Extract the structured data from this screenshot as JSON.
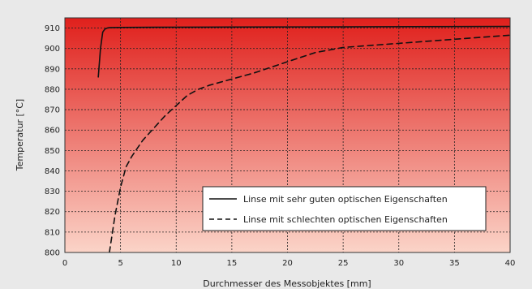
{
  "chart_data": {
    "type": "line",
    "title": "",
    "xlabel": "Durchmesser des Messobjektes [mm]",
    "ylabel": "Temperatur [°C]",
    "xlim": [
      0,
      40
    ],
    "ylim": [
      800,
      915
    ],
    "x_ticks": [
      0,
      5,
      10,
      15,
      20,
      25,
      30,
      35,
      40
    ],
    "y_ticks": [
      800,
      810,
      820,
      830,
      840,
      850,
      860,
      870,
      880,
      890,
      900,
      910
    ],
    "grid": true,
    "legend_position": "bottom-right",
    "background_gradient": {
      "top": "#e0201c",
      "bottom": "#fbd4c8"
    },
    "series": [
      {
        "name": "Linse mit sehr guten optischen Eigenschaften",
        "line_style": "solid",
        "color": "#111111",
        "x": [
          3.0,
          3.2,
          3.4,
          3.6,
          3.8,
          4,
          5,
          8,
          15,
          25,
          40
        ],
        "y": [
          886,
          900,
          908,
          909.5,
          910,
          910.2,
          910.3,
          910.4,
          910.5,
          910.6,
          910.8
        ]
      },
      {
        "name": "Linse mit schlechten optischen Eigenschaften",
        "line_style": "dashed",
        "color": "#111111",
        "x": [
          4.0,
          4.5,
          5.0,
          5.5,
          6.0,
          7.0,
          8.0,
          9.0,
          10.0,
          11.0,
          12.0,
          13.0,
          15.0,
          17.0,
          20.0,
          22.5,
          25.0,
          30.0,
          35.0,
          40.0
        ],
        "y": [
          800,
          818,
          832,
          842,
          847,
          855,
          861,
          867,
          872,
          877,
          880,
          882,
          885,
          888,
          893.5,
          898,
          900.5,
          902.5,
          904.5,
          906.5
        ]
      }
    ]
  }
}
